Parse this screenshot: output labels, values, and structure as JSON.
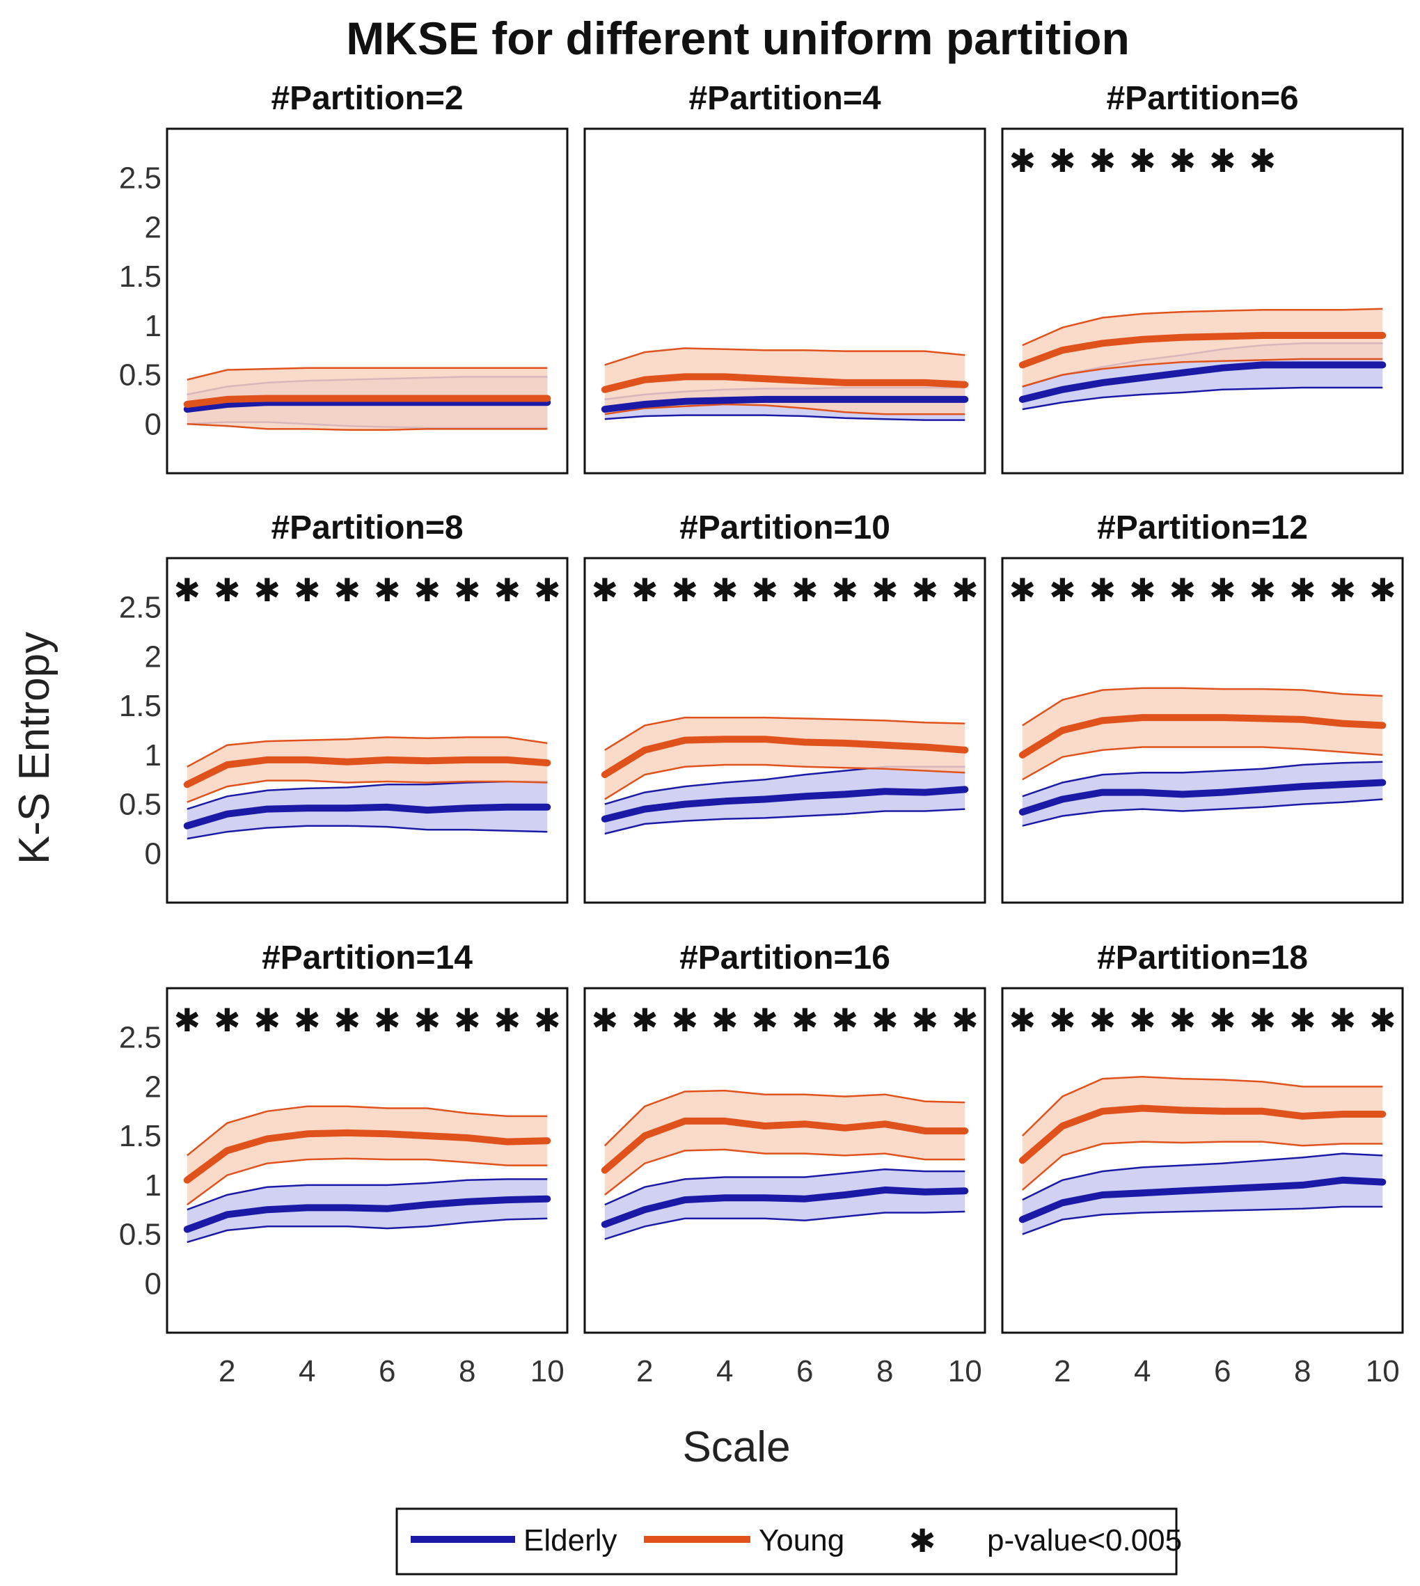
{
  "chart_data": {
    "type": "line",
    "title": "MKSE for different uniform partition",
    "xlabel": "Scale",
    "ylabel": "K-S Entropy",
    "x": [
      1,
      2,
      3,
      4,
      5,
      6,
      7,
      8,
      9,
      10
    ],
    "xlim": [
      0.5,
      10.5
    ],
    "ylim": [
      -0.5,
      3.0
    ],
    "xticks": [
      "2",
      "4",
      "6",
      "8",
      "10"
    ],
    "xtick_values": [
      2,
      4,
      6,
      8,
      10
    ],
    "yticks": [
      "0",
      "0.5",
      "1",
      "1.5",
      "2",
      "2.5"
    ],
    "ytick_values": [
      0,
      0.5,
      1,
      1.5,
      2,
      2.5
    ],
    "series_colors": {
      "Elderly": "#1a1aa6",
      "Young": "#e0521c"
    },
    "band_colors": {
      "Elderly": "#c9c9f2",
      "Young": "#f9d3c0"
    },
    "legend": {
      "placement": "bottom-center",
      "items": [
        {
          "label": "Elderly",
          "kind": "line",
          "color": "#1a1aa6"
        },
        {
          "label": "Young",
          "kind": "line",
          "color": "#e0521c"
        },
        {
          "label": "p-value<0.005",
          "kind": "marker",
          "symbol": "✱"
        }
      ]
    },
    "significance_marker": "✱",
    "panels": [
      {
        "title": "#Partition=2",
        "significant_scales": [],
        "elderly": {
          "mean": [
            0.15,
            0.2,
            0.22,
            0.22,
            0.22,
            0.22,
            0.22,
            0.22,
            0.22,
            0.22
          ],
          "upper": [
            0.3,
            0.38,
            0.42,
            0.44,
            0.45,
            0.46,
            0.47,
            0.48,
            0.48,
            0.48
          ],
          "lower": [
            0.0,
            0.02,
            0.02,
            0.0,
            -0.02,
            -0.03,
            -0.04,
            -0.04,
            -0.04,
            -0.04
          ]
        },
        "young": {
          "mean": [
            0.2,
            0.25,
            0.26,
            0.26,
            0.26,
            0.26,
            0.26,
            0.26,
            0.26,
            0.26
          ],
          "upper": [
            0.45,
            0.55,
            0.56,
            0.57,
            0.57,
            0.57,
            0.57,
            0.57,
            0.57,
            0.57
          ],
          "lower": [
            0.0,
            -0.02,
            -0.05,
            -0.05,
            -0.06,
            -0.06,
            -0.05,
            -0.05,
            -0.05,
            -0.05
          ]
        }
      },
      {
        "title": "#Partition=4",
        "significant_scales": [],
        "elderly": {
          "mean": [
            0.15,
            0.2,
            0.23,
            0.24,
            0.25,
            0.25,
            0.25,
            0.25,
            0.25,
            0.25
          ],
          "upper": [
            0.25,
            0.3,
            0.33,
            0.35,
            0.36,
            0.36,
            0.37,
            0.37,
            0.37,
            0.37
          ],
          "lower": [
            0.05,
            0.08,
            0.09,
            0.09,
            0.09,
            0.08,
            0.06,
            0.05,
            0.04,
            0.04
          ]
        },
        "young": {
          "mean": [
            0.35,
            0.45,
            0.48,
            0.48,
            0.46,
            0.44,
            0.42,
            0.42,
            0.42,
            0.4
          ],
          "upper": [
            0.6,
            0.73,
            0.77,
            0.76,
            0.75,
            0.75,
            0.74,
            0.74,
            0.74,
            0.7
          ],
          "lower": [
            0.1,
            0.16,
            0.18,
            0.2,
            0.19,
            0.16,
            0.12,
            0.1,
            0.1,
            0.1
          ]
        }
      },
      {
        "title": "#Partition=6",
        "significant_scales": [
          1,
          2,
          3,
          4,
          5,
          6,
          7
        ],
        "elderly": {
          "mean": [
            0.25,
            0.35,
            0.42,
            0.47,
            0.52,
            0.57,
            0.6,
            0.6,
            0.6,
            0.6
          ],
          "upper": [
            0.38,
            0.5,
            0.58,
            0.65,
            0.7,
            0.76,
            0.8,
            0.82,
            0.82,
            0.82
          ],
          "lower": [
            0.15,
            0.22,
            0.27,
            0.3,
            0.32,
            0.35,
            0.36,
            0.37,
            0.37,
            0.37
          ]
        },
        "young": {
          "mean": [
            0.6,
            0.75,
            0.82,
            0.86,
            0.88,
            0.89,
            0.9,
            0.9,
            0.9,
            0.9
          ],
          "upper": [
            0.8,
            0.98,
            1.08,
            1.12,
            1.14,
            1.15,
            1.16,
            1.16,
            1.16,
            1.17
          ],
          "lower": [
            0.38,
            0.5,
            0.56,
            0.6,
            0.63,
            0.64,
            0.65,
            0.66,
            0.66,
            0.66
          ]
        }
      },
      {
        "title": "#Partition=8",
        "significant_scales": [
          1,
          2,
          3,
          4,
          5,
          6,
          7,
          8,
          9,
          10
        ],
        "elderly": {
          "mean": [
            0.28,
            0.4,
            0.45,
            0.46,
            0.46,
            0.47,
            0.44,
            0.46,
            0.47,
            0.47
          ],
          "upper": [
            0.45,
            0.58,
            0.64,
            0.66,
            0.67,
            0.7,
            0.7,
            0.72,
            0.73,
            0.73
          ],
          "lower": [
            0.15,
            0.22,
            0.26,
            0.28,
            0.28,
            0.27,
            0.24,
            0.24,
            0.23,
            0.22
          ]
        },
        "young": {
          "mean": [
            0.7,
            0.9,
            0.95,
            0.95,
            0.93,
            0.95,
            0.94,
            0.95,
            0.95,
            0.92
          ],
          "upper": [
            0.88,
            1.1,
            1.14,
            1.15,
            1.16,
            1.18,
            1.17,
            1.18,
            1.18,
            1.12
          ],
          "lower": [
            0.52,
            0.68,
            0.74,
            0.74,
            0.72,
            0.73,
            0.72,
            0.73,
            0.73,
            0.72
          ]
        }
      },
      {
        "title": "#Partition=10",
        "significant_scales": [
          1,
          2,
          3,
          4,
          5,
          6,
          7,
          8,
          9,
          10
        ],
        "elderly": {
          "mean": [
            0.35,
            0.45,
            0.5,
            0.53,
            0.55,
            0.58,
            0.6,
            0.63,
            0.62,
            0.65
          ],
          "upper": [
            0.5,
            0.62,
            0.68,
            0.72,
            0.75,
            0.8,
            0.84,
            0.88,
            0.88,
            0.88
          ],
          "lower": [
            0.2,
            0.3,
            0.33,
            0.35,
            0.36,
            0.38,
            0.4,
            0.43,
            0.43,
            0.45
          ]
        },
        "young": {
          "mean": [
            0.8,
            1.05,
            1.15,
            1.16,
            1.16,
            1.13,
            1.12,
            1.1,
            1.08,
            1.05
          ],
          "upper": [
            1.05,
            1.3,
            1.38,
            1.38,
            1.38,
            1.37,
            1.36,
            1.35,
            1.33,
            1.32
          ],
          "lower": [
            0.55,
            0.8,
            0.88,
            0.9,
            0.9,
            0.88,
            0.87,
            0.86,
            0.84,
            0.82
          ]
        }
      },
      {
        "title": "#Partition=12",
        "significant_scales": [
          1,
          2,
          3,
          4,
          5,
          6,
          7,
          8,
          9,
          10
        ],
        "elderly": {
          "mean": [
            0.42,
            0.55,
            0.62,
            0.62,
            0.6,
            0.62,
            0.65,
            0.68,
            0.7,
            0.72
          ],
          "upper": [
            0.58,
            0.72,
            0.8,
            0.82,
            0.82,
            0.84,
            0.86,
            0.9,
            0.92,
            0.93
          ],
          "lower": [
            0.28,
            0.38,
            0.43,
            0.45,
            0.43,
            0.45,
            0.47,
            0.5,
            0.52,
            0.55
          ]
        },
        "young": {
          "mean": [
            1.0,
            1.25,
            1.35,
            1.38,
            1.38,
            1.38,
            1.37,
            1.36,
            1.32,
            1.3
          ],
          "upper": [
            1.3,
            1.56,
            1.66,
            1.68,
            1.68,
            1.67,
            1.67,
            1.66,
            1.62,
            1.6
          ],
          "lower": [
            0.75,
            0.98,
            1.05,
            1.08,
            1.08,
            1.08,
            1.08,
            1.06,
            1.03,
            1.0
          ]
        }
      },
      {
        "title": "#Partition=14",
        "significant_scales": [
          1,
          2,
          3,
          4,
          5,
          6,
          7,
          8,
          9,
          10
        ],
        "elderly": {
          "mean": [
            0.55,
            0.7,
            0.75,
            0.77,
            0.77,
            0.76,
            0.8,
            0.83,
            0.85,
            0.86
          ],
          "upper": [
            0.75,
            0.9,
            0.98,
            1.0,
            1.0,
            1.0,
            1.02,
            1.05,
            1.06,
            1.06
          ],
          "lower": [
            0.42,
            0.54,
            0.58,
            0.58,
            0.58,
            0.56,
            0.58,
            0.62,
            0.65,
            0.66
          ]
        },
        "young": {
          "mean": [
            1.05,
            1.35,
            1.47,
            1.52,
            1.53,
            1.52,
            1.5,
            1.48,
            1.44,
            1.45
          ],
          "upper": [
            1.3,
            1.63,
            1.75,
            1.8,
            1.8,
            1.78,
            1.78,
            1.73,
            1.7,
            1.7
          ],
          "lower": [
            0.8,
            1.1,
            1.22,
            1.26,
            1.27,
            1.26,
            1.26,
            1.23,
            1.2,
            1.2
          ]
        }
      },
      {
        "title": "#Partition=16",
        "significant_scales": [
          1,
          2,
          3,
          4,
          5,
          6,
          7,
          8,
          9,
          10
        ],
        "elderly": {
          "mean": [
            0.6,
            0.75,
            0.85,
            0.87,
            0.87,
            0.86,
            0.9,
            0.95,
            0.93,
            0.94
          ],
          "upper": [
            0.8,
            0.98,
            1.06,
            1.08,
            1.08,
            1.08,
            1.12,
            1.16,
            1.14,
            1.14
          ],
          "lower": [
            0.45,
            0.58,
            0.66,
            0.66,
            0.66,
            0.64,
            0.68,
            0.72,
            0.72,
            0.73
          ]
        },
        "young": {
          "mean": [
            1.15,
            1.5,
            1.65,
            1.65,
            1.6,
            1.62,
            1.58,
            1.62,
            1.55,
            1.55
          ],
          "upper": [
            1.4,
            1.8,
            1.95,
            1.96,
            1.92,
            1.92,
            1.9,
            1.92,
            1.85,
            1.84
          ],
          "lower": [
            0.9,
            1.22,
            1.35,
            1.36,
            1.32,
            1.32,
            1.3,
            1.32,
            1.26,
            1.26
          ]
        }
      },
      {
        "title": "#Partition=18",
        "significant_scales": [
          1,
          2,
          3,
          4,
          5,
          6,
          7,
          8,
          9,
          10
        ],
        "elderly": {
          "mean": [
            0.65,
            0.82,
            0.9,
            0.92,
            0.94,
            0.96,
            0.98,
            1.0,
            1.05,
            1.03
          ],
          "upper": [
            0.85,
            1.05,
            1.14,
            1.18,
            1.2,
            1.22,
            1.25,
            1.28,
            1.32,
            1.3
          ],
          "lower": [
            0.5,
            0.65,
            0.7,
            0.72,
            0.73,
            0.74,
            0.75,
            0.76,
            0.78,
            0.78
          ]
        },
        "young": {
          "mean": [
            1.25,
            1.6,
            1.75,
            1.78,
            1.76,
            1.75,
            1.75,
            1.7,
            1.72,
            1.72
          ],
          "upper": [
            1.5,
            1.9,
            2.08,
            2.1,
            2.08,
            2.07,
            2.05,
            2.0,
            2.0,
            2.0
          ],
          "lower": [
            0.95,
            1.3,
            1.42,
            1.44,
            1.43,
            1.44,
            1.44,
            1.4,
            1.42,
            1.42
          ]
        }
      }
    ]
  }
}
